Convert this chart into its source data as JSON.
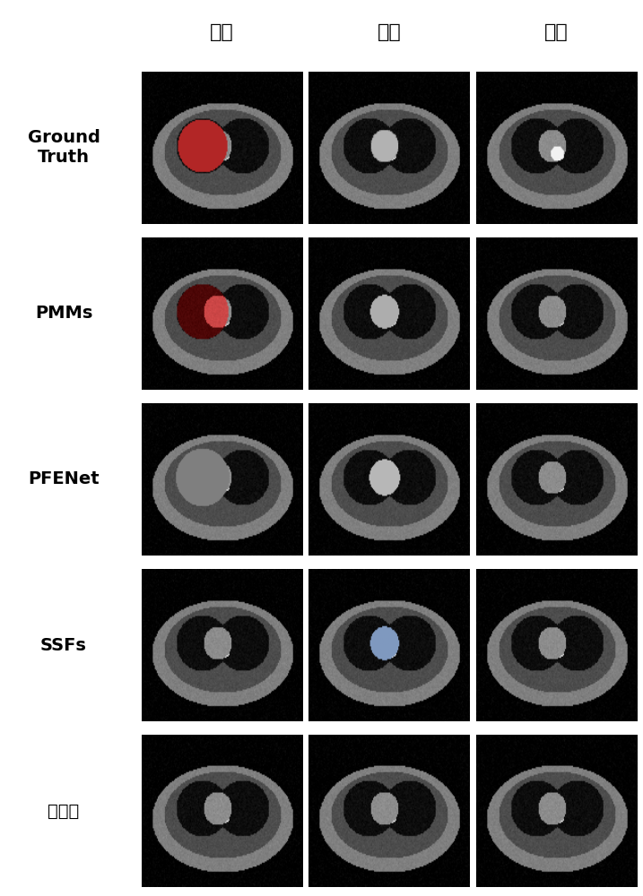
{
  "col_labels": [
    "左肺",
    "心脏",
    "脊髓"
  ],
  "row_labels": [
    "Ground\nTruth",
    "PMMs",
    "PFENet",
    "SSFs",
    "本发明"
  ],
  "row_labels_display": [
    [
      "Ground",
      "Truth"
    ],
    [
      "PMMs"
    ],
    [
      "PFENet"
    ],
    [
      "SSFs"
    ],
    [
      "本发明"
    ]
  ],
  "background_color": "#ffffff",
  "label_fontsize": 14,
  "col_label_fontsize": 16,
  "figure_width": 7.17,
  "figure_height": 10.0,
  "dpi": 100,
  "n_rows": 5,
  "n_cols": 3
}
